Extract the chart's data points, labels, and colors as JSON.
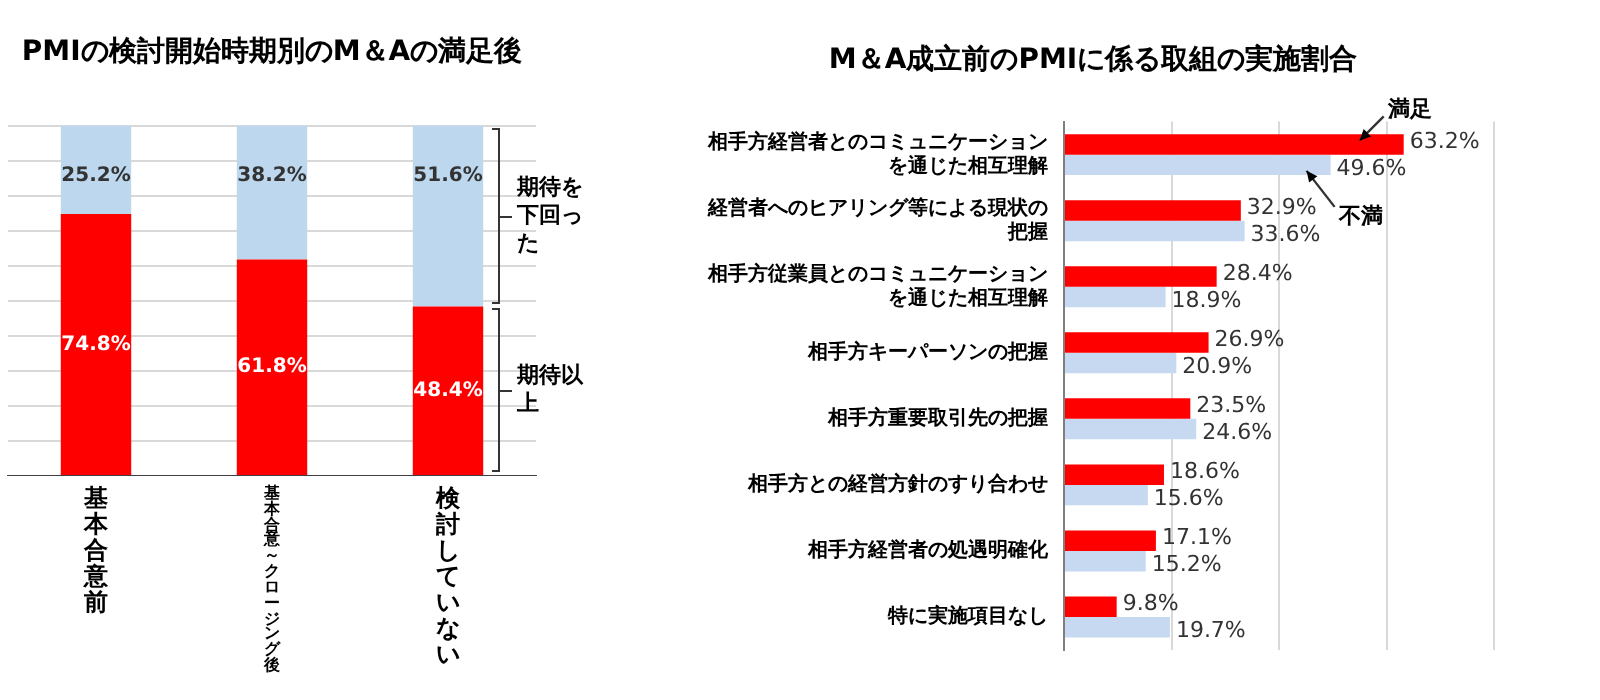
{
  "chart_data": [
    {
      "type": "bar",
      "title": "PMIの検討開始時期別のM＆Aの満足後",
      "categories": [
        "基本合意前",
        "基本合意～クロージング後",
        "検討していない"
      ],
      "stacked": true,
      "series": [
        {
          "name": "期待以上",
          "color": "#ff0000",
          "values": [
            74.8,
            61.8,
            48.4
          ],
          "value_labels": [
            "74.8%",
            "61.8%",
            "48.4%"
          ]
        },
        {
          "name": "期待を下回った",
          "color": "#bdd7ee",
          "values": [
            25.2,
            38.2,
            51.6
          ],
          "value_labels": [
            "25.2%",
            "38.2%",
            "51.6%"
          ]
        }
      ],
      "ylim": [
        0,
        100
      ],
      "yticks": [
        {
          "value": 0,
          "label": null
        },
        {
          "value": 10,
          "label": null
        },
        {
          "value": 20,
          "label": null
        },
        {
          "value": 30,
          "label": null
        },
        {
          "value": 40,
          "label": null
        },
        {
          "value": 50,
          "label": null
        },
        {
          "value": 60,
          "label": null
        },
        {
          "value": 70,
          "label": null
        },
        {
          "value": 80,
          "label": null
        },
        {
          "value": 90,
          "label": null
        },
        {
          "value": 100,
          "label": null
        }
      ],
      "grid": "y",
      "legend": false,
      "tick_labels": "x"
    },
    {
      "type": "bar",
      "title": "M＆A成立前のPMIに係る取組の実施割合",
      "orientation": "horizontal",
      "categories": [
        "相手方経営者とのコミュニケーションを通じた相互理解",
        "経営者へのヒアリング等による現状の把握",
        "相手方従業員とのコミュニケーションを通じた相互理解",
        "相手方キーパーソンの把握",
        "相手方重要取引先の把握",
        "相手方との経営方針のすり合わせ",
        "相手方経営者の処遇明確化",
        "特に実施項目なし"
      ],
      "series": [
        {
          "name": "満足",
          "color": "#ff0000",
          "values": [
            63.2,
            32.9,
            28.4,
            26.9,
            23.5,
            18.6,
            17.1,
            9.8
          ],
          "value_labels": [
            "63.2%",
            "32.9%",
            "28.4%",
            "26.9%",
            "23.5%",
            "18.6%",
            "17.1%",
            "9.8%"
          ]
        },
        {
          "name": "不満",
          "color": "#c6d9f1",
          "values": [
            49.6,
            33.6,
            18.9,
            20.9,
            24.6,
            15.6,
            15.2,
            19.7
          ],
          "value_labels": [
            "49.6%",
            "33.6%",
            "18.9%",
            "20.9%",
            "24.6%",
            "15.6%",
            "15.2%",
            "19.7%"
          ]
        }
      ],
      "xlim": [
        0,
        80
      ],
      "xticks": [
        {
          "value": 0,
          "label": null
        },
        {
          "value": 20,
          "label": null
        },
        {
          "value": 40,
          "label": null
        },
        {
          "value": 60,
          "label": null
        },
        {
          "value": 80,
          "label": null
        }
      ],
      "grid": "x",
      "legend": false,
      "tick_labels": "y"
    }
  ]
}
